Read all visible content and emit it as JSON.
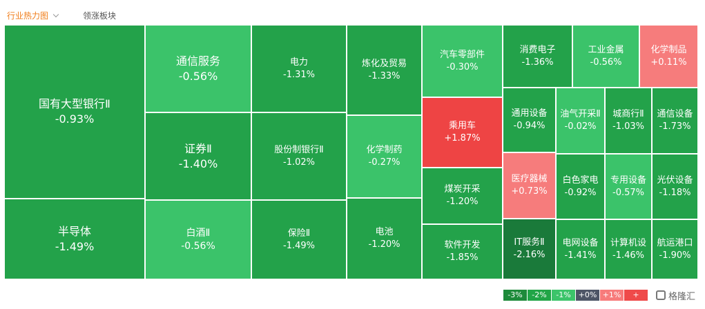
{
  "tabs": {
    "active": "行业热力图",
    "other": "领涨板块"
  },
  "chart_data": {
    "type": "treemap",
    "unit": "%",
    "items": [
      {
        "name": "国有大型银行Ⅱ",
        "change": -0.93
      },
      {
        "name": "半导体",
        "change": -1.49
      },
      {
        "name": "通信服务",
        "change": -0.56
      },
      {
        "name": "证券Ⅱ",
        "change": -1.4
      },
      {
        "name": "白酒Ⅱ",
        "change": -0.56
      },
      {
        "name": "电力",
        "change": -1.31
      },
      {
        "name": "股份制银行Ⅱ",
        "change": -1.02
      },
      {
        "name": "保险Ⅱ",
        "change": -1.49
      },
      {
        "name": "炼化及贸易",
        "change": -1.33
      },
      {
        "name": "化学制药",
        "change": -0.27
      },
      {
        "name": "电池",
        "change": -1.2
      },
      {
        "name": "汽车零部件",
        "change": -0.3
      },
      {
        "name": "乘用车",
        "change": 1.87
      },
      {
        "name": "煤炭开采",
        "change": -1.2
      },
      {
        "name": "软件开发",
        "change": -1.85
      },
      {
        "name": "消费电子",
        "change": -1.36
      },
      {
        "name": "工业金属",
        "change": -0.56
      },
      {
        "name": "化学制品",
        "change": 0.11
      },
      {
        "name": "通用设备",
        "change": -0.94
      },
      {
        "name": "油气开采Ⅱ",
        "change": -0.02
      },
      {
        "name": "城商行Ⅱ",
        "change": -1.03
      },
      {
        "name": "通信设备",
        "change": -1.73
      },
      {
        "name": "医疗器械",
        "change": 0.73
      },
      {
        "name": "白色家电",
        "change": -0.92
      },
      {
        "name": "专用设备",
        "change": -0.57
      },
      {
        "name": "光伏设备",
        "change": -1.18
      },
      {
        "name": "IT服务Ⅱ",
        "change": -2.16
      },
      {
        "name": "电网设备",
        "change": -1.41
      },
      {
        "name": "计算机设",
        "change": -1.46
      },
      {
        "name": "航运港口",
        "change": -1.9
      }
    ],
    "legend": [
      {
        "label": "-3%",
        "color": "#1d8a3a"
      },
      {
        "label": "-2%",
        "color": "#21a547"
      },
      {
        "label": "-1%",
        "color": "#3cc46a"
      },
      {
        "label": "+0%",
        "color": "#4d5566"
      },
      {
        "label": "+1%",
        "color": "#f77b7b"
      },
      {
        "label": "+",
        "color": "#ef4a4a"
      }
    ]
  },
  "colors": {
    "neg_strong": "#1a7a3a",
    "neg_mid": "#23a24a",
    "neg_light": "#3bc36a",
    "pos_light": "#f67c7c",
    "pos_strong": "#ee4444"
  },
  "logo": "格隆汇"
}
